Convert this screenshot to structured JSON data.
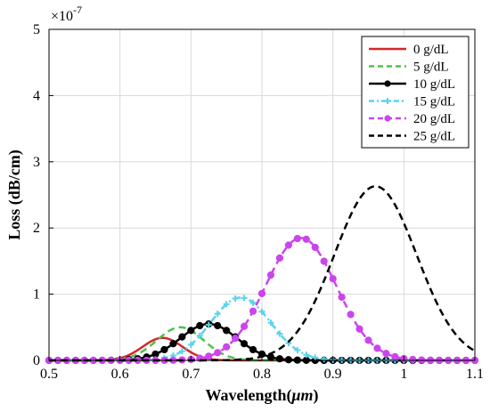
{
  "chart_data": {
    "type": "line",
    "xlabel": "Wavelength(",
    "xlabel_unit": "μm",
    "xlabel_close": ")",
    "ylabel": "Loss (dB/cm)",
    "exponent": "×10",
    "exponent_power": "-7",
    "xlim": [
      0.5,
      1.1
    ],
    "ylim": [
      0,
      5
    ],
    "y_scale_factor": 1e-07,
    "x_ticks": [
      "0.5",
      "0.6",
      "0.7",
      "0.8",
      "0.9",
      "1",
      "1.1"
    ],
    "y_ticks": [
      "0",
      "1",
      "2",
      "3",
      "4",
      "5"
    ],
    "grid": true,
    "legend_position": "top-right",
    "series": [
      {
        "name": "0 g/dL",
        "color": "#d62728",
        "style": "solid",
        "marker": "none",
        "center": 0.66,
        "peak": 0.34,
        "width": 0.028
      },
      {
        "name": "5 g/dL",
        "color": "#4cc24c",
        "style": "dashed",
        "marker": "none",
        "center": 0.685,
        "peak": 0.5,
        "width": 0.033
      },
      {
        "name": "10 g/dL",
        "color": "#000000",
        "style": "solid",
        "marker": "circle",
        "center": 0.725,
        "peak": 0.55,
        "width": 0.04
      },
      {
        "name": "15 g/dL",
        "color": "#5ad2f0",
        "style": "dashdot",
        "marker": "cross",
        "center": 0.77,
        "peak": 0.95,
        "width": 0.042
      },
      {
        "name": "20 g/dL",
        "color": "#cc44ee",
        "style": "dashed",
        "marker": "circle",
        "center": 0.855,
        "peak": 1.85,
        "width": 0.05
      },
      {
        "name": "25 g/dL",
        "color": "#000000",
        "style": "dashed",
        "marker": "none",
        "center": 0.96,
        "peak": 2.63,
        "width": 0.058
      }
    ]
  }
}
